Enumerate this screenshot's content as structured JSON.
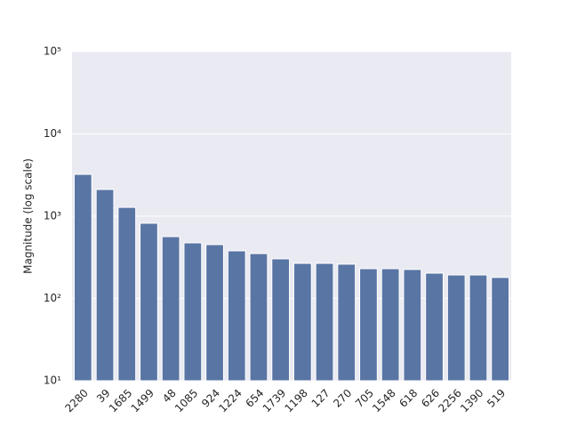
{
  "chart_data": {
    "type": "bar",
    "ylabel": "Magnitude (log scale)",
    "categories": [
      "2280",
      "39",
      "1685",
      "1499",
      "48",
      "1085",
      "924",
      "1224",
      "654",
      "1739",
      "1198",
      "127",
      "270",
      "705",
      "1548",
      "618",
      "626",
      "2256",
      "1390",
      "519"
    ],
    "values": [
      3220,
      2110,
      1280,
      820,
      564,
      474,
      451,
      379,
      351,
      303,
      267,
      267,
      261,
      230,
      230,
      225,
      203,
      193,
      193,
      180
    ],
    "color": "#5975a4",
    "log_scale": true,
    "ylim": [
      10,
      100000
    ],
    "yticks": [
      {
        "value": 10,
        "label": "10¹"
      },
      {
        "value": 100,
        "label": "10²"
      },
      {
        "value": 1000,
        "label": "10³"
      },
      {
        "value": 10000,
        "label": "10⁴"
      },
      {
        "value": 100000,
        "label": "10⁵"
      }
    ],
    "grid": true
  }
}
